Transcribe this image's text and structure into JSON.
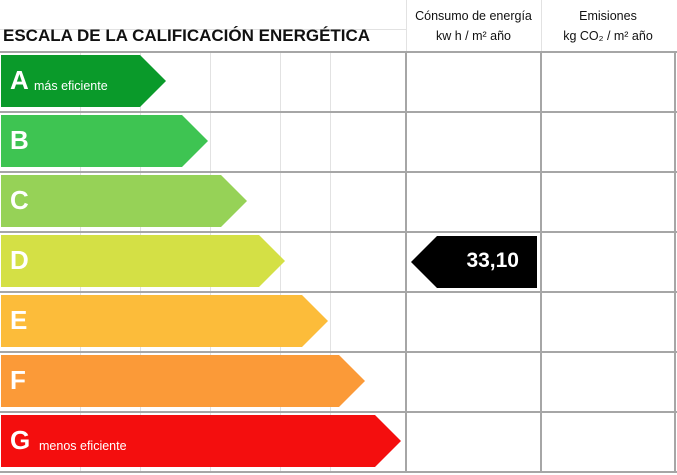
{
  "header": {
    "title": "ESCALA DE LA CALIFICACIÓN ENERGÉTICA",
    "consumo": {
      "line1": "Cónsumo de energía",
      "line2": "kw h / m² año"
    },
    "emisiones": {
      "line1": "Emisiones",
      "line2": "kg CO₂ / m² año"
    }
  },
  "ratings": [
    {
      "letter": "A",
      "sublabel": "más eficiente",
      "color": "#0a9a2a"
    },
    {
      "letter": "B",
      "sublabel": "",
      "color": "#3ec452"
    },
    {
      "letter": "C",
      "sublabel": "",
      "color": "#96d257"
    },
    {
      "letter": "D",
      "sublabel": "",
      "color": "#d4e045"
    },
    {
      "letter": "E",
      "sublabel": "",
      "color": "#fcbc3a"
    },
    {
      "letter": "F",
      "sublabel": "",
      "color": "#fb9a38"
    },
    {
      "letter": "G",
      "sublabel": "menos eficiente",
      "color": "#f40e0e"
    }
  ],
  "consumo_value": {
    "rating": "D",
    "value": "33,10"
  }
}
